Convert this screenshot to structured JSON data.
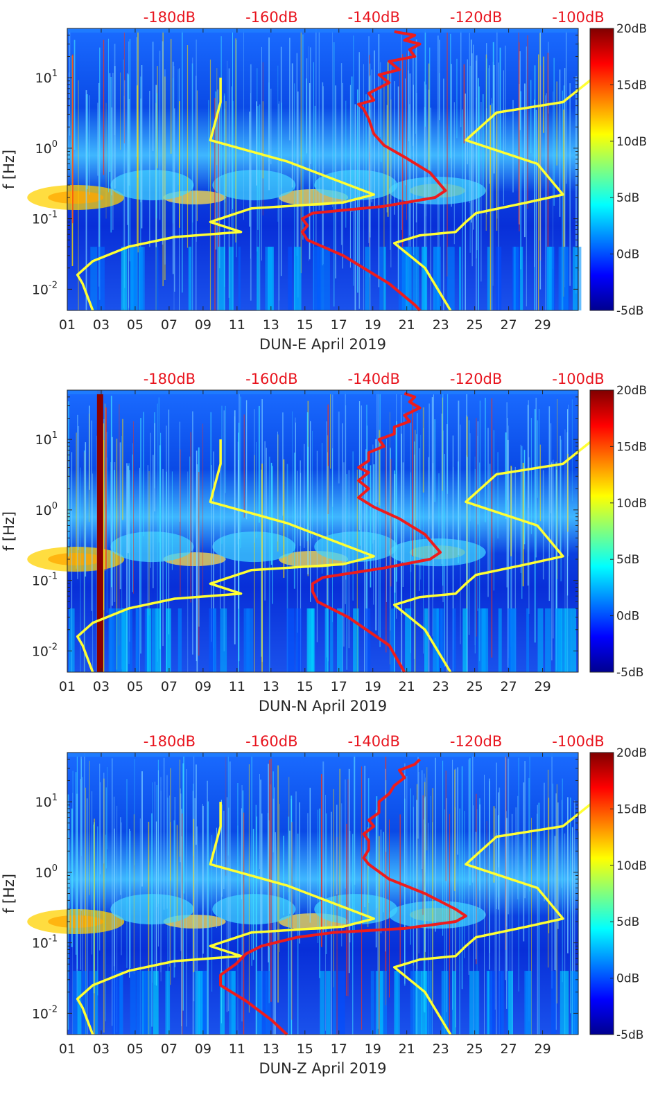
{
  "colormap": "jet",
  "colors": {
    "noise_model": "#ffff33",
    "signal_curve": "#ee1c1c",
    "top_axis_text": "#e8141e"
  },
  "chart_data": [
    {
      "type": "heatmap",
      "title": "",
      "xlabel": "DUN-E April 2019",
      "ylabel": "f [Hz]",
      "x_ticks": [
        "01",
        "03",
        "05",
        "07",
        "09",
        "11",
        "13",
        "15",
        "17",
        "19",
        "21",
        "23",
        "25",
        "27",
        "29"
      ],
      "y_ticks": [
        "10^-2",
        "10^-1",
        "10^0",
        "10^1"
      ],
      "y_scale": "log",
      "ylim": [
        0.005,
        50
      ],
      "top_axis_ticks": [
        "-180dB",
        "-160dB",
        "-140dB",
        "-120dB",
        "-100dB"
      ],
      "colorbar": {
        "ticks": [
          "-5dB",
          "0dB",
          "5dB",
          "10dB",
          "15dB",
          "20dB"
        ],
        "range": [
          -5,
          20
        ]
      },
      "series": [
        {
          "color": "yellow",
          "points": [
            [
              -170,
              10
            ],
            [
              -170,
              4.5
            ],
            [
              -172,
              1.3
            ],
            [
              -157,
              0.65
            ],
            [
              -140,
              0.22
            ],
            [
              -146,
              0.17
            ],
            [
              -164,
              0.14
            ],
            [
              -172,
              0.09
            ],
            [
              -166,
              0.065
            ],
            [
              -179,
              0.055
            ],
            [
              -188,
              0.04
            ],
            [
              -195,
              0.025
            ],
            [
              -198,
              0.016
            ],
            [
              -197,
              0.012
            ],
            [
              -195,
              0.005
            ]
          ]
        },
        {
          "color": "yellow",
          "points": [
            [
              -97,
              10
            ],
            [
              -103,
              4.5
            ],
            [
              -116,
              3.2
            ],
            [
              -122,
              1.3
            ],
            [
              -108,
              0.6
            ],
            [
              -103,
              0.22
            ],
            [
              -110,
              0.17
            ],
            [
              -120,
              0.12
            ],
            [
              -122,
              0.09
            ],
            [
              -124,
              0.065
            ],
            [
              -131,
              0.058
            ],
            [
              -136,
              0.045
            ],
            [
              -130,
              0.02
            ],
            [
              -125,
              0.005
            ]
          ]
        },
        {
          "color": "red",
          "points": [
            [
              -136,
              45
            ],
            [
              -132,
              40
            ],
            [
              -134,
              34
            ],
            [
              -131,
              30
            ],
            [
              -133,
              25
            ],
            [
              -132,
              20
            ],
            [
              -137,
              17
            ],
            [
              -135,
              13
            ],
            [
              -139,
              11
            ],
            [
              -137,
              8.5
            ],
            [
              -141,
              6
            ],
            [
              -140,
              4.8
            ],
            [
              -143,
              4.2
            ],
            [
              -142,
              3.6
            ],
            [
              -141,
              2.6
            ],
            [
              -140,
              1.6
            ],
            [
              -138,
              1.1
            ],
            [
              -134,
              0.75
            ],
            [
              -129,
              0.45
            ],
            [
              -126,
              0.25
            ],
            [
              -128,
              0.2
            ],
            [
              -138,
              0.15
            ],
            [
              -152,
              0.12
            ],
            [
              -154,
              0.1
            ],
            [
              -153,
              0.08
            ],
            [
              -154,
              0.065
            ],
            [
              -153,
              0.05
            ],
            [
              -146,
              0.03
            ],
            [
              -137,
              0.012
            ],
            [
              -132,
              0.006
            ],
            [
              -131,
              0.005
            ]
          ]
        }
      ]
    },
    {
      "type": "heatmap",
      "title": "",
      "xlabel": "DUN-N April 2019",
      "ylabel": "f [Hz]",
      "x_ticks": [
        "01",
        "03",
        "05",
        "07",
        "09",
        "11",
        "13",
        "15",
        "17",
        "19",
        "21",
        "23",
        "25",
        "27",
        "29"
      ],
      "y_ticks": [
        "10^-2",
        "10^-1",
        "10^0",
        "10^1"
      ],
      "y_scale": "log",
      "ylim": [
        0.005,
        50
      ],
      "top_axis_ticks": [
        "-180dB",
        "-160dB",
        "-140dB",
        "-120dB",
        "-100dB"
      ],
      "colorbar": {
        "ticks": [
          "-5dB",
          "0dB",
          "5dB",
          "10dB",
          "15dB",
          "20dB"
        ],
        "range": [
          -5,
          20
        ]
      },
      "series": [
        {
          "color": "yellow",
          "points": [
            [
              -170,
              10
            ],
            [
              -170,
              4.5
            ],
            [
              -172,
              1.3
            ],
            [
              -157,
              0.65
            ],
            [
              -140,
              0.22
            ],
            [
              -146,
              0.17
            ],
            [
              -164,
              0.14
            ],
            [
              -172,
              0.09
            ],
            [
              -166,
              0.065
            ],
            [
              -179,
              0.055
            ],
            [
              -188,
              0.04
            ],
            [
              -195,
              0.025
            ],
            [
              -198,
              0.016
            ],
            [
              -197,
              0.012
            ],
            [
              -195,
              0.005
            ]
          ]
        },
        {
          "color": "yellow",
          "points": [
            [
              -97,
              10
            ],
            [
              -103,
              4.5
            ],
            [
              -116,
              3.2
            ],
            [
              -122,
              1.3
            ],
            [
              -108,
              0.6
            ],
            [
              -103,
              0.22
            ],
            [
              -110,
              0.17
            ],
            [
              -120,
              0.12
            ],
            [
              -122,
              0.09
            ],
            [
              -124,
              0.065
            ],
            [
              -131,
              0.058
            ],
            [
              -136,
              0.045
            ],
            [
              -130,
              0.02
            ],
            [
              -125,
              0.005
            ]
          ]
        },
        {
          "color": "red",
          "points": [
            [
              -134,
              45
            ],
            [
              -132,
              40
            ],
            [
              -133,
              34
            ],
            [
              -131,
              28
            ],
            [
              -134,
              22
            ],
            [
              -133,
              18
            ],
            [
              -136,
              15
            ],
            [
              -136,
              12
            ],
            [
              -139,
              10
            ],
            [
              -138,
              8
            ],
            [
              -141,
              6.5
            ],
            [
              -141,
              5
            ],
            [
              -143,
              4
            ],
            [
              -141,
              3.4
            ],
            [
              -143,
              2.6
            ],
            [
              -141,
              2
            ],
            [
              -143,
              1.5
            ],
            [
              -140,
              1.1
            ],
            [
              -135,
              0.75
            ],
            [
              -130,
              0.45
            ],
            [
              -127,
              0.25
            ],
            [
              -129,
              0.2
            ],
            [
              -138,
              0.15
            ],
            [
              -150,
              0.11
            ],
            [
              -152,
              0.09
            ],
            [
              -152,
              0.07
            ],
            [
              -151,
              0.05
            ],
            [
              -145,
              0.03
            ],
            [
              -137,
              0.012
            ],
            [
              -134,
              0.005
            ]
          ]
        }
      ]
    },
    {
      "type": "heatmap",
      "title": "",
      "xlabel": "DUN-Z April 2019",
      "ylabel": "f [Hz]",
      "x_ticks": [
        "01",
        "03",
        "05",
        "07",
        "09",
        "11",
        "13",
        "15",
        "17",
        "19",
        "21",
        "23",
        "25",
        "27",
        "29"
      ],
      "y_ticks": [
        "10^-2",
        "10^-1",
        "10^0",
        "10^1"
      ],
      "y_scale": "log",
      "ylim": [
        0.005,
        50
      ],
      "top_axis_ticks": [
        "-180dB",
        "-160dB",
        "-140dB",
        "-120dB",
        "-100dB"
      ],
      "colorbar": {
        "ticks": [
          "-5dB",
          "0dB",
          "5dB",
          "10dB",
          "15dB",
          "20dB"
        ],
        "range": [
          -5,
          20
        ]
      },
      "series": [
        {
          "color": "yellow",
          "points": [
            [
              -170,
              10
            ],
            [
              -170,
              4.5
            ],
            [
              -172,
              1.3
            ],
            [
              -157,
              0.65
            ],
            [
              -140,
              0.22
            ],
            [
              -146,
              0.17
            ],
            [
              -164,
              0.14
            ],
            [
              -172,
              0.09
            ],
            [
              -166,
              0.065
            ],
            [
              -179,
              0.055
            ],
            [
              -188,
              0.04
            ],
            [
              -195,
              0.025
            ],
            [
              -198,
              0.016
            ],
            [
              -197,
              0.012
            ],
            [
              -195,
              0.005
            ]
          ]
        },
        {
          "color": "yellow",
          "points": [
            [
              -97,
              10
            ],
            [
              -103,
              4.5
            ],
            [
              -116,
              3.2
            ],
            [
              -122,
              1.3
            ],
            [
              -108,
              0.6
            ],
            [
              -103,
              0.22
            ],
            [
              -110,
              0.17
            ],
            [
              -120,
              0.12
            ],
            [
              -122,
              0.09
            ],
            [
              -124,
              0.065
            ],
            [
              -131,
              0.058
            ],
            [
              -136,
              0.045
            ],
            [
              -130,
              0.02
            ],
            [
              -125,
              0.005
            ]
          ]
        },
        {
          "color": "red",
          "points": [
            [
              -131,
              40
            ],
            [
              -132,
              34
            ],
            [
              -135,
              28
            ],
            [
              -134,
              22
            ],
            [
              -136,
              17
            ],
            [
              -137,
              13
            ],
            [
              -139,
              10
            ],
            [
              -139,
              7
            ],
            [
              -141,
              5.5
            ],
            [
              -140,
              4.5
            ],
            [
              -142,
              3.5
            ],
            [
              -141,
              2.8
            ],
            [
              -141,
              2.1
            ],
            [
              -142,
              1.6
            ],
            [
              -141,
              1.3
            ],
            [
              -137,
              0.8
            ],
            [
              -130,
              0.5
            ],
            [
              -124,
              0.3
            ],
            [
              -122,
              0.24
            ],
            [
              -124,
              0.2
            ],
            [
              -134,
              0.16
            ],
            [
              -148,
              0.14
            ],
            [
              -155,
              0.12
            ],
            [
              -162,
              0.09
            ],
            [
              -165,
              0.07
            ],
            [
              -167,
              0.05
            ],
            [
              -170,
              0.035
            ],
            [
              -170,
              0.025
            ],
            [
              -165,
              0.015
            ],
            [
              -160,
              0.008
            ],
            [
              -157,
              0.005
            ]
          ]
        }
      ]
    }
  ]
}
